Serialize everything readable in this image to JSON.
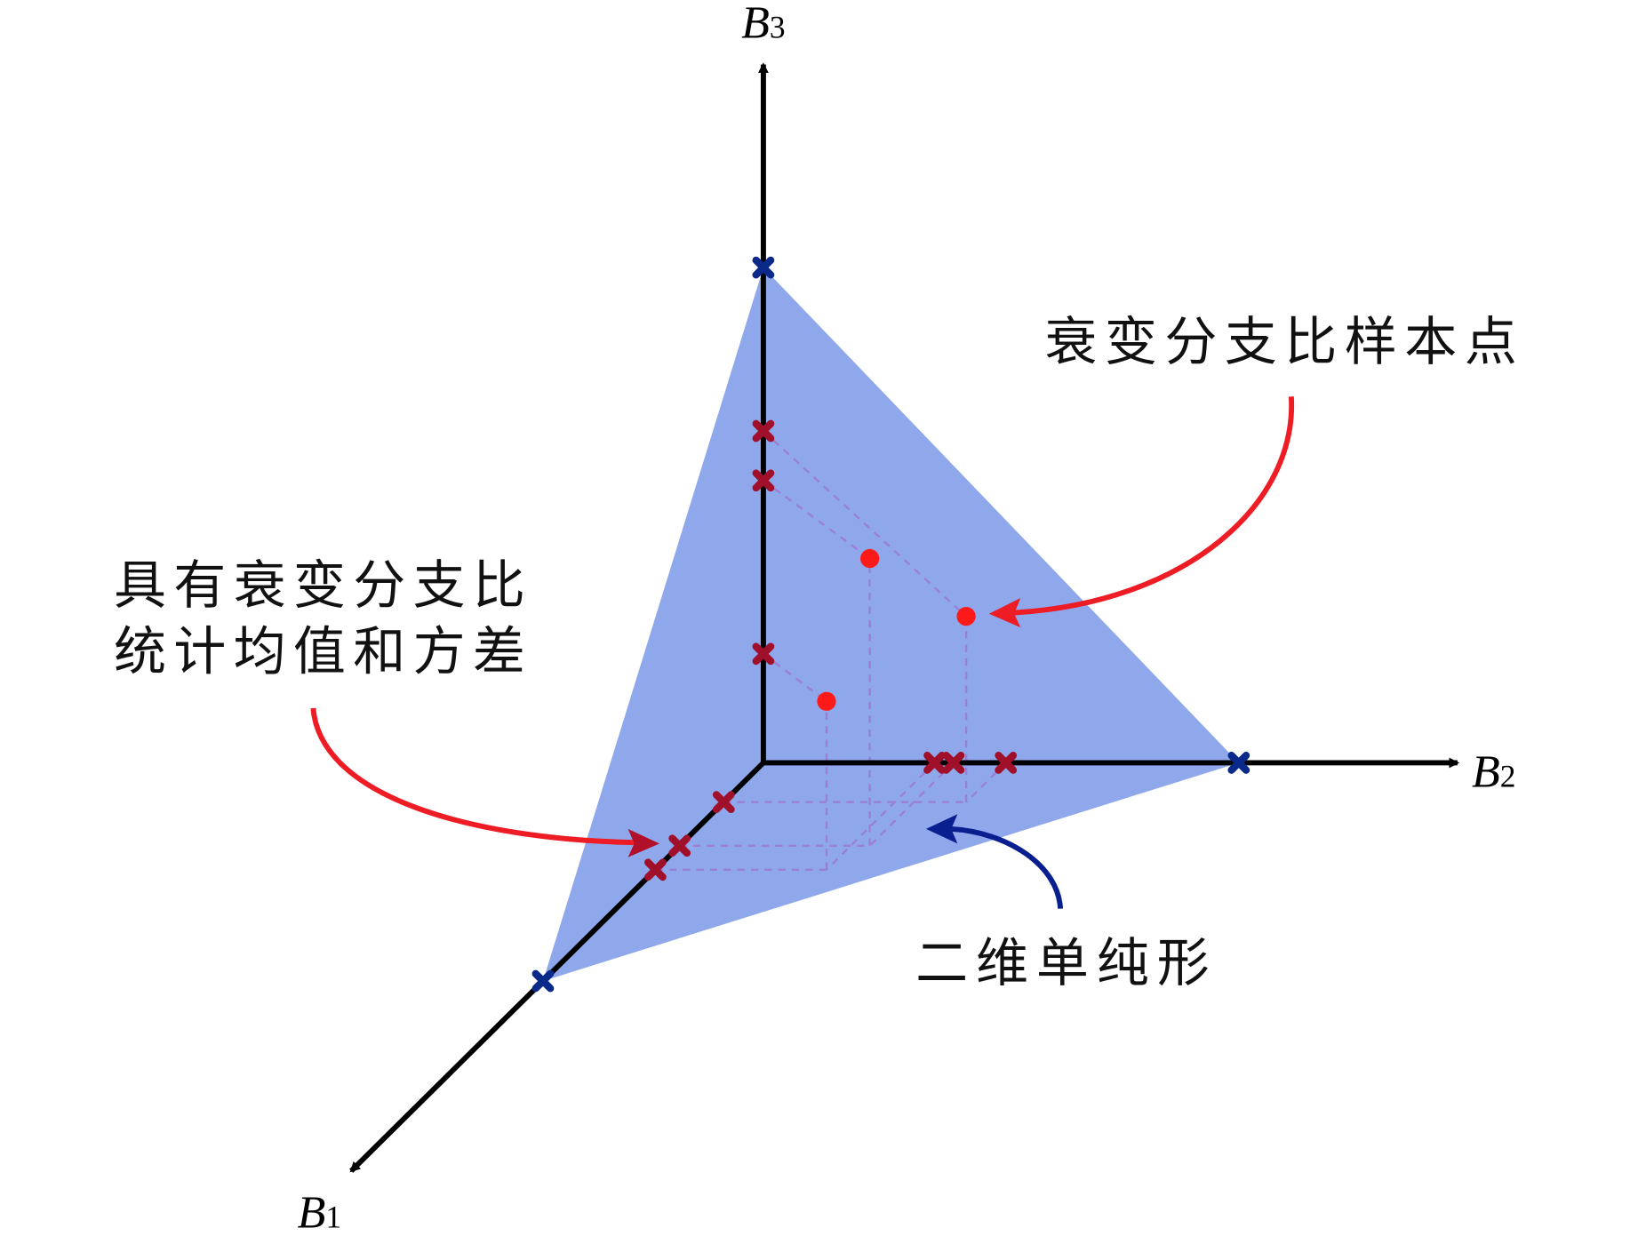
{
  "colors": {
    "simplex_fill": "#8fa8ec",
    "axis": "#000000",
    "axis_near_origin": "#0a0f3a",
    "sample_point": "#ff1a1a",
    "axis_marker": "#a0102a",
    "vertex_marker": "#0a2a8a",
    "dashed_projection": "#9a7fd6",
    "red_arrow": "#ee1c24",
    "blue_arrow": "#0a1f8f"
  },
  "axes": [
    {
      "name": "B",
      "sub": "1"
    },
    {
      "name": "B",
      "sub": "2"
    },
    {
      "name": "B",
      "sub": "3"
    }
  ],
  "annotations": {
    "sample_points": "衰变分支比样本点",
    "stats_line1": "具有衰变分支比",
    "stats_line2": "统计均值和方差",
    "simplex": "二维单纯形"
  },
  "chart_data": {
    "type": "scatter",
    "projection": "3d-axes",
    "simplex_vertices": [
      [
        1,
        0,
        0
      ],
      [
        0,
        1,
        0
      ],
      [
        0,
        0,
        1
      ]
    ],
    "axis_marks": {
      "B1": [
        0.18,
        0.38,
        0.49
      ],
      "B2": [
        0.36,
        0.4,
        0.51
      ],
      "B3": [
        0.22,
        0.57,
        0.67
      ]
    },
    "points": [
      {
        "b1": 0.18,
        "b2": 0.51,
        "b3": 0.375,
        "b3_mark": 0.67
      },
      {
        "b1": 0.38,
        "b2": 0.4,
        "b3": 0.58,
        "b3_mark": 0.57
      },
      {
        "b1": 0.49,
        "b2": 0.36,
        "b3": 0.34,
        "b3_mark": 0.22
      }
    ],
    "grid": false
  }
}
